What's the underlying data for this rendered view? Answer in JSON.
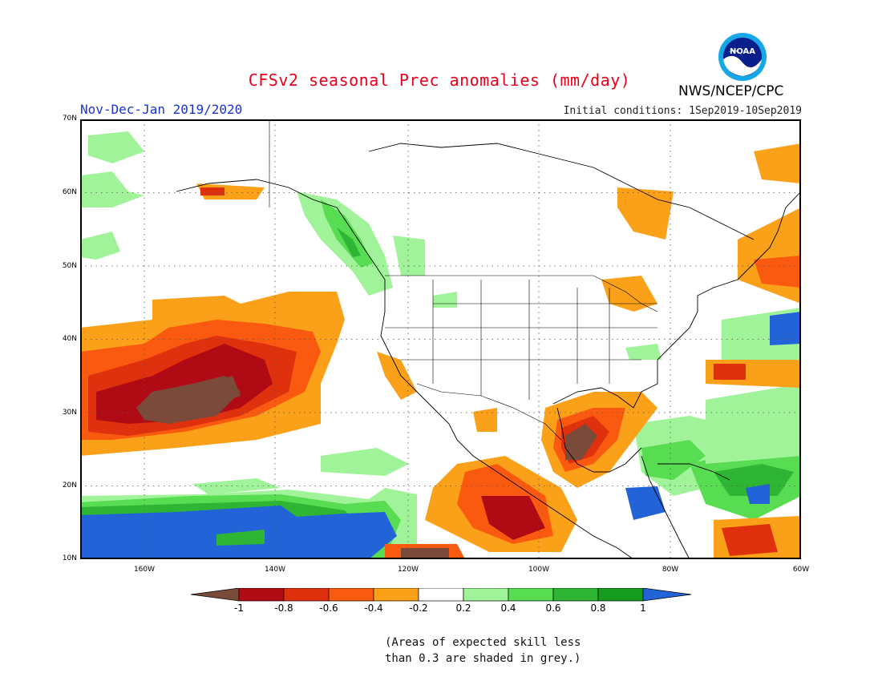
{
  "header": {
    "title": "CFSv2 seasonal Prec anomalies (mm/day)",
    "season": "Nov-Dec-Jan 2019/2020",
    "initial_conditions": "Initial conditions: 1Sep2019-10Sep2019",
    "agency": "NWS/NCEP/CPC",
    "logo_text": "NOAA"
  },
  "map": {
    "lat_labels": [
      "70N",
      "60N",
      "50N",
      "40N",
      "30N",
      "20N",
      "10N"
    ],
    "lon_labels": [
      "160W",
      "140W",
      "120W",
      "100W",
      "80W",
      "60W"
    ]
  },
  "colorbar": {
    "labels": [
      "-1",
      "-0.8",
      "-0.6",
      "-0.4",
      "-0.2",
      "0.2",
      "0.4",
      "0.6",
      "0.8",
      "1"
    ],
    "colors": {
      "lt_-1": "#7a4a3a",
      "-1_-0.8": "#b00b14",
      "-0.8_-0.6": "#e0310f",
      "-0.6_-0.4": "#fa5a10",
      "-0.4_-0.2": "#fba019",
      "-0.2_0.2": "#ffffff",
      "0.2_0.4": "#a1f39a",
      "0.4_0.6": "#58dc52",
      "0.6_0.8": "#2fb534",
      "0.8_1": "#149b20",
      "gt_1": "#2264d8"
    }
  },
  "note": {
    "line1": "(Areas of expected skill less",
    "line2": "than 0.3 are shaded in grey.)"
  }
}
